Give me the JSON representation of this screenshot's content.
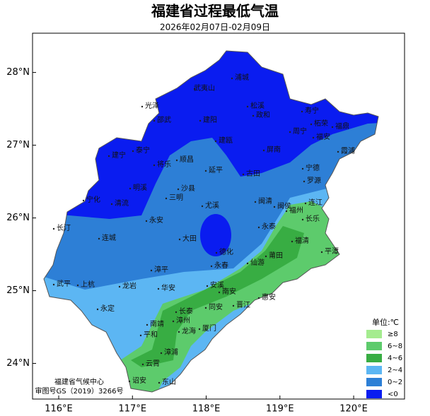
{
  "title": "福建省过程最低气温",
  "subtitle": "2026年02月07日-02月09日",
  "map": {
    "xlim": [
      115.645,
      120.69
    ],
    "ylim": [
      23.51,
      28.54
    ],
    "xticks": [
      {
        "value": 116,
        "label": "116°E"
      },
      {
        "value": 117,
        "label": "117°E"
      },
      {
        "value": 118,
        "label": "118°E"
      },
      {
        "value": 119,
        "label": "119°E"
      },
      {
        "value": 120,
        "label": "120°E"
      }
    ],
    "yticks": [
      {
        "value": 24,
        "label": "24°N"
      },
      {
        "value": 25,
        "label": "25°N"
      },
      {
        "value": 26,
        "label": "26°N"
      },
      {
        "value": 27,
        "label": "27°N"
      },
      {
        "value": 28,
        "label": "28°N"
      }
    ]
  },
  "places": [
    "浦城",
    "武夷山",
    "松溪",
    "政和",
    "寿宁",
    "光泽",
    "邵武",
    "建阳",
    "周宁",
    "福安",
    "福鼎",
    "柘荣",
    "泰宁",
    "建宁",
    "将乐",
    "顺昌",
    "建瓯",
    "屏南",
    "古田",
    "宁德",
    "霞浦",
    "罗源",
    "连江",
    "福州",
    "长乐",
    "闽清",
    "闽侯",
    "永泰",
    "福清",
    "平潭",
    "延平",
    "沙县",
    "三明",
    "明溪",
    "宁化",
    "清流",
    "尤溪",
    "永安",
    "长汀",
    "连城",
    "大田",
    "德化",
    "仙游",
    "莆田",
    "永春",
    "漳平",
    "武平",
    "上杭",
    "龙岩",
    "安溪",
    "南安",
    "惠安",
    "华安",
    "永定",
    "同安",
    "晋江",
    "长泰",
    "南靖",
    "漳州",
    "厦门",
    "平和",
    "龙海",
    "漳浦",
    "云霄",
    "诏安",
    "东山"
  ],
  "legend": {
    "title": "单位:℃",
    "items": [
      {
        "label": "≥8",
        "color": "#a4ec8f"
      },
      {
        "label": "6~8",
        "color": "#5dcb6c"
      },
      {
        "label": "4~6",
        "color": "#38ad43"
      },
      {
        "label": "2~4",
        "color": "#5cb6f3"
      },
      {
        "label": "0~2",
        "color": "#2d7fd6"
      },
      {
        "label": "<0",
        "color": "#0a1cf0"
      }
    ]
  },
  "credits": [
    "福建省气候中心",
    "审图号GS（2019）3266号"
  ]
}
